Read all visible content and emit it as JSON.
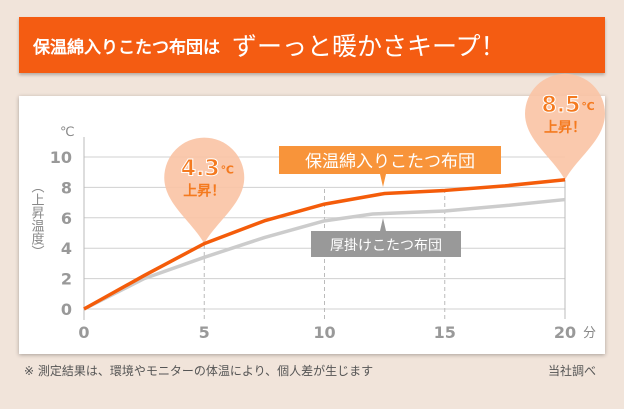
{
  "header": {
    "prefix": "保温綿入りこたつ布団は",
    "headline": "ずーっと暖かさキープ！"
  },
  "chart_data": {
    "type": "line",
    "xlabel": "分",
    "ylabel": "（上昇温度）",
    "yunit": "℃",
    "xlim": [
      0,
      20
    ],
    "ylim": [
      0,
      10
    ],
    "xticks": [
      0,
      5,
      10,
      15,
      20
    ],
    "yticks": [
      0,
      2,
      4,
      6,
      8,
      10
    ],
    "grid": true,
    "series": [
      {
        "name": "保温綿入りこたつ布団",
        "color": "#f45c0a",
        "x": [
          0,
          2.5,
          5,
          7.5,
          10,
          12.5,
          15,
          17.5,
          20
        ],
        "y": [
          0,
          2.2,
          4.3,
          5.8,
          6.9,
          7.6,
          7.8,
          8.1,
          8.5
        ]
      },
      {
        "name": "厚掛けこたつ布団",
        "color": "#cccccc",
        "x": [
          0,
          2.5,
          5,
          7.5,
          10,
          12,
          15,
          17.5,
          20
        ],
        "y": [
          0,
          2.0,
          3.4,
          4.7,
          5.8,
          6.25,
          6.45,
          6.8,
          7.2
        ]
      }
    ],
    "annotations": [
      {
        "x": 5,
        "value": "4.3",
        "unit": "℃",
        "text": "上昇！"
      },
      {
        "x": 20,
        "value": "8.5",
        "unit": "℃",
        "text": "上昇！"
      }
    ]
  },
  "footer": {
    "note": "※ 測定結果は、環境やモニターの体温により、個人差が生じます",
    "source": "当社調べ"
  }
}
